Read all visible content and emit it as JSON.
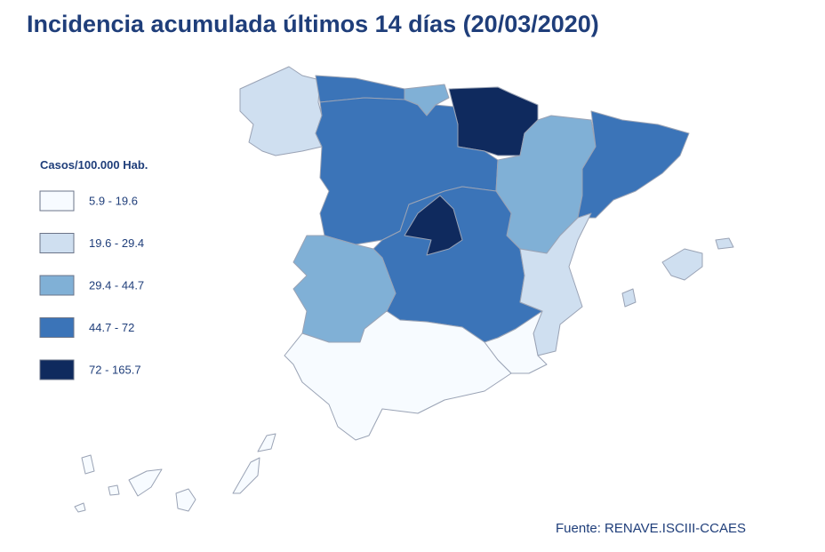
{
  "title": "Incidencia acumulada últimos 14 días (20/03/2020)",
  "legend": {
    "title": "Casos/100.000 Hab.",
    "items": [
      {
        "label": "5.9 - 19.6",
        "color": "#f7fbff"
      },
      {
        "label": "19.6 - 29.4",
        "color": "#cfdff0"
      },
      {
        "label": "29.4 - 44.7",
        "color": "#80b0d6"
      },
      {
        "label": "44.7 - 72",
        "color": "#3b74b8"
      },
      {
        "label": "72 - 165.7",
        "color": "#0f2a5e"
      }
    ]
  },
  "source": "Fuente: RENAVE.ISCIII-CCAES"
}
